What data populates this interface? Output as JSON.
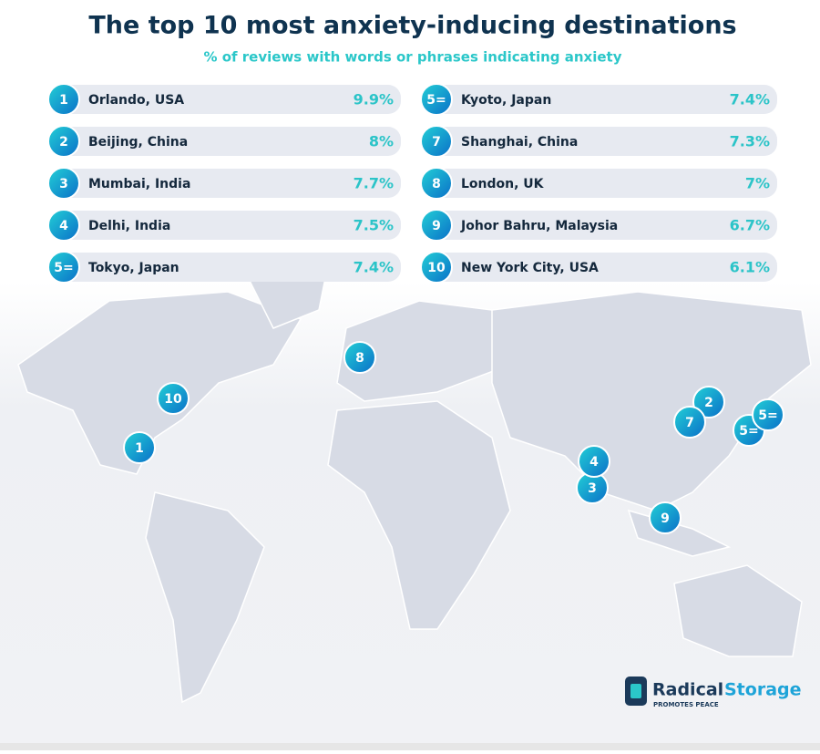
{
  "header": {
    "title": "The top 10 most anxiety-inducing destinations",
    "subtitle": "% of reviews with words or phrases indicating anxiety"
  },
  "rankings": [
    {
      "rank": "1",
      "city": "Orlando, USA",
      "value": "9.9%"
    },
    {
      "rank": "2",
      "city": "Beijing, China",
      "value": "8%"
    },
    {
      "rank": "3",
      "city": "Mumbai, India",
      "value": "7.7%"
    },
    {
      "rank": "4",
      "city": "Delhi, India",
      "value": "7.5%"
    },
    {
      "rank": "5=",
      "city": "Tokyo, Japan",
      "value": "7.4%"
    },
    {
      "rank": "5=",
      "city": "Kyoto, Japan",
      "value": "7.4%"
    },
    {
      "rank": "7",
      "city": "Shanghai, China",
      "value": "7.3%"
    },
    {
      "rank": "8",
      "city": "London, UK",
      "value": "7%"
    },
    {
      "rank": "9",
      "city": "Johor Bahru, Malaysia",
      "value": "6.7%"
    },
    {
      "rank": "10",
      "city": "New York City, USA",
      "value": "6.1%"
    }
  ],
  "logo": {
    "name_part1": "Radical",
    "name_part2": "Storage",
    "tagline": "PROMOTES PEACE"
  }
}
